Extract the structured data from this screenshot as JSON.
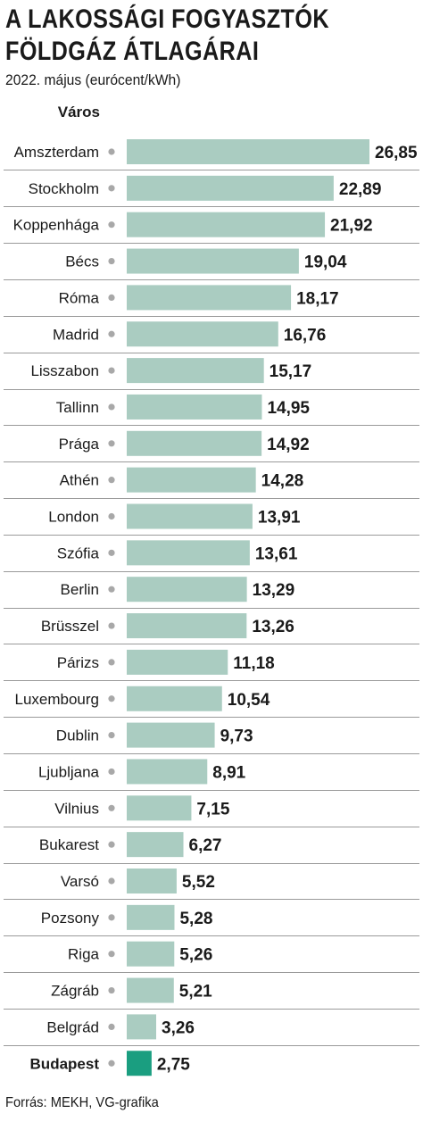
{
  "header": {
    "title_line1": "A LAKOSSÁGI FOGYASZTÓK",
    "title_line2": "FÖLDGÁZ ÁTLAGÁRAI",
    "subtitle": "2022. május (eurócent/kWh)",
    "column_header": "Város"
  },
  "footer": {
    "source": "Forrás: MEKH, VG-grafika"
  },
  "colors": {
    "bar": "#aaccc1",
    "highlight": "#1a9e80",
    "dot": "#a8a8a8"
  },
  "chart_data": {
    "type": "bar",
    "orientation": "horizontal",
    "categories": [
      "Amszterdam",
      "Stockholm",
      "Koppenhága",
      "Bécs",
      "Róma",
      "Madrid",
      "Lisszabon",
      "Tallinn",
      "Prága",
      "Athén",
      "London",
      "Szófia",
      "Berlin",
      "Brüsszel",
      "Párizs",
      "Luxembourg",
      "Dublin",
      "Ljubljana",
      "Vilnius",
      "Bukarest",
      "Varsó",
      "Pozsony",
      "Riga",
      "Zágráb",
      "Belgrád",
      "Budapest"
    ],
    "values": [
      26.85,
      22.89,
      21.92,
      19.04,
      18.17,
      16.76,
      15.17,
      14.95,
      14.92,
      14.28,
      13.91,
      13.61,
      13.29,
      13.26,
      11.18,
      10.54,
      9.73,
      8.91,
      7.15,
      6.27,
      5.52,
      5.28,
      5.26,
      5.21,
      3.26,
      2.75
    ],
    "value_labels": [
      "26,85",
      "22,89",
      "21,92",
      "19,04",
      "18,17",
      "16,76",
      "15,17",
      "14,95",
      "14,92",
      "14,28",
      "13,91",
      "13,61",
      "13,29",
      "13,26",
      "11,18",
      "10,54",
      "9,73",
      "8,91",
      "7,15",
      "6,27",
      "5,52",
      "5,28",
      "5,26",
      "5,21",
      "3,26",
      "2,75"
    ],
    "highlight": "Budapest",
    "title": "A LAKOSSÁGI FOGYASZTÓK FÖLDGÁZ ÁTLAGÁRAI",
    "subtitle": "2022. május (eurócent/kWh)",
    "ylabel": "Város",
    "xlim": [
      0,
      26.85
    ],
    "grid": false,
    "legend": "none"
  }
}
